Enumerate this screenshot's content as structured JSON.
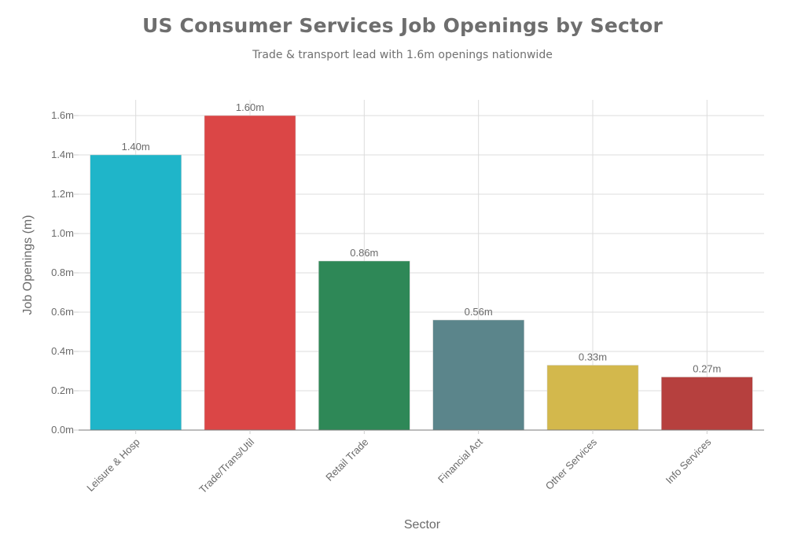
{
  "chart_data": {
    "type": "bar",
    "title": "US Consumer Services Job Openings by Sector",
    "subtitle": "Trade & transport lead with 1.6m openings nationwide",
    "xlabel": "Sector",
    "ylabel": "Job Openings (m)",
    "categories": [
      "Leisure & Hosp",
      "Trade/Trans/Util",
      "Retail Trade",
      "Financial Act",
      "Other Services",
      "Info Services"
    ],
    "values": [
      1.4,
      1.6,
      0.86,
      0.56,
      0.33,
      0.27
    ],
    "value_labels": [
      "1.40m",
      "1.60m",
      "0.86m",
      "0.56m",
      "0.33m",
      "0.27m"
    ],
    "colors": [
      "#1fb5c9",
      "#db4646",
      "#2e8857",
      "#5b858b",
      "#d3b84c",
      "#b6403e"
    ],
    "yticks": [
      0.0,
      0.2,
      0.4,
      0.6,
      0.8,
      1.0,
      1.2,
      1.4,
      1.6
    ],
    "ytick_labels": [
      "0.0m",
      "0.2m",
      "0.4m",
      "0.6m",
      "0.8m",
      "1.0m",
      "1.2m",
      "1.4m",
      "1.6m"
    ],
    "ylim": [
      0,
      1.68
    ],
    "grid": true,
    "legend": null
  }
}
